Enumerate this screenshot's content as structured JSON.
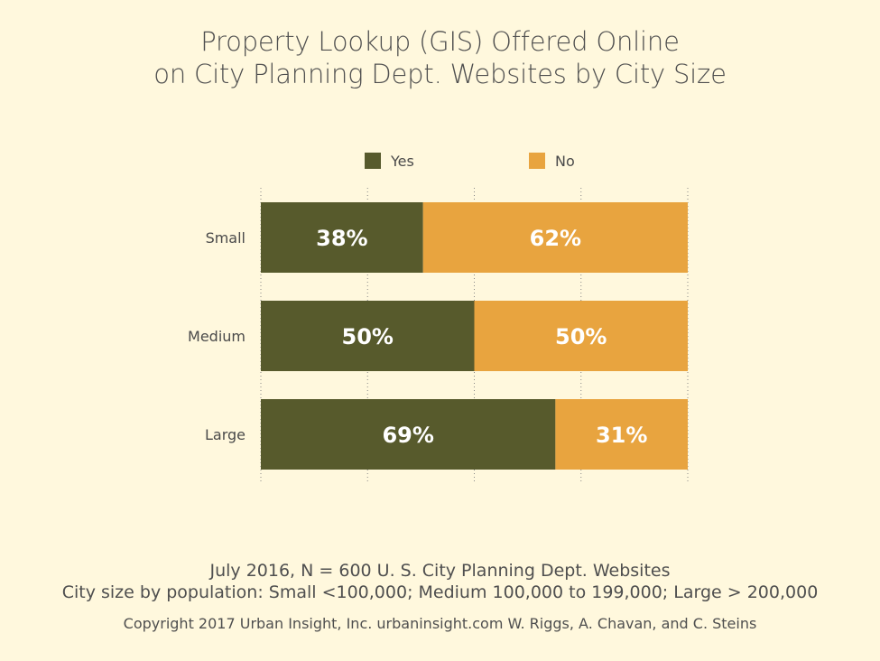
{
  "title_lines": [
    "Property Lookup (GIS) Offered Online",
    "on City Planning Dept. Websites by City Size"
  ],
  "colors": {
    "yes": "#575a2c",
    "no": "#e8a43f",
    "background": "#fff8dd",
    "gridline": "#888888"
  },
  "legend": [
    {
      "label": "Yes",
      "color": "#575a2c"
    },
    {
      "label": "No",
      "color": "#e8a43f"
    }
  ],
  "footer": {
    "line1": "July 2016, N = 600 U. S. City Planning Dept. Websites",
    "line2": "City size by population:  Small <100,000; Medium 100,000 to 199,000; Large > 200,000",
    "line3": "Copyright 2017 Urban Insight, Inc. urbaninsight.com  W. Riggs, A. Chavan, and C. Steins"
  },
  "chart_data": {
    "type": "bar",
    "orientation": "horizontal",
    "stacked": true,
    "categories": [
      "Small",
      "Medium",
      "Large"
    ],
    "series": [
      {
        "name": "Yes",
        "values": [
          38,
          50,
          69
        ],
        "labels": [
          "38%",
          "50%",
          "69%"
        ]
      },
      {
        "name": "No",
        "values": [
          62,
          50,
          31
        ],
        "labels": [
          "62%",
          "50%",
          "31%"
        ]
      }
    ],
    "xlim": [
      0,
      100
    ],
    "xgrid": "dotted",
    "legend_position": "top"
  }
}
